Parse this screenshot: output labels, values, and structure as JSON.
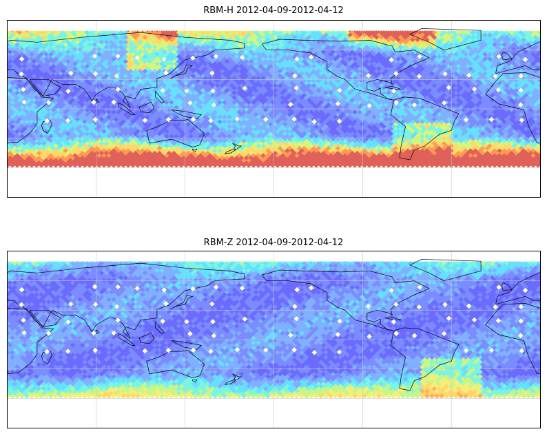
{
  "panels": [
    {
      "title": "RBM-H 2012-04-09-2012-04-12",
      "field": "h",
      "palette": [
        "#6b6bff",
        "#7a8cff",
        "#80b0ff",
        "#66e0ff",
        "#7cf5e0",
        "#d6f57a",
        "#ffd86a",
        "#ff9a55",
        "#e0605a"
      ]
    },
    {
      "title": "RBM-Z 2012-04-09-2012-04-12",
      "field": "z",
      "palette": [
        "#6b6bff",
        "#7a8cff",
        "#80b0ff",
        "#66e0ff",
        "#7cf5e0",
        "#c8f58a",
        "#f2f07a",
        "#ffd86a",
        "#ffb060"
      ]
    }
  ],
  "colors": {
    "frame": "#000000",
    "gridline": "#c8c8c8",
    "coastline": "#000000",
    "station_marker": "#ffffff"
  },
  "map": {
    "projection": "PlateCarree",
    "lon_range": [
      20,
      380
    ],
    "lat_range": [
      -90,
      90
    ],
    "data_lat_range": [
      -60,
      80
    ],
    "gridlines": true
  }
}
